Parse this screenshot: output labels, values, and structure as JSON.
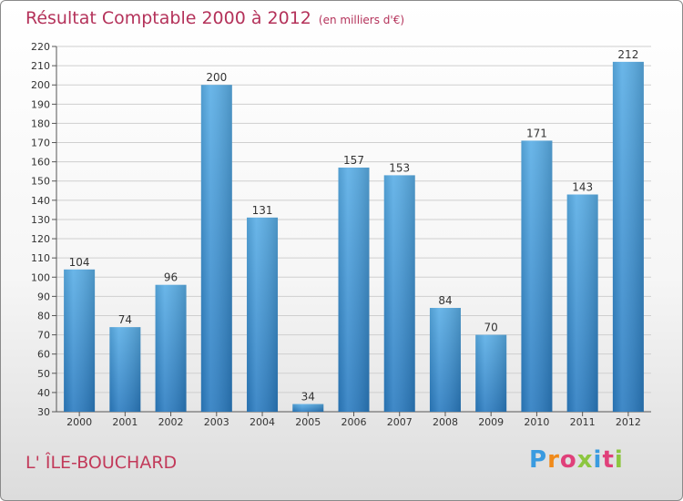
{
  "title": "Résultat Comptable 2000 à 2012",
  "subtitle": "(en milliers d'€)",
  "place": "L' ÎLE-BOUCHARD",
  "brand": "Proxiti",
  "colors": {
    "bar_top": "#5aaee6",
    "bar_bottom": "#2b7cc1",
    "title": "#b4325a",
    "brand_letters": [
      "#3a9be0",
      "#f08a1a",
      "#e0407a",
      "#8cc63f",
      "#3a9be0",
      "#e0407a",
      "#8cc63f"
    ]
  },
  "chart_data": {
    "type": "bar",
    "categories": [
      "2000",
      "2001",
      "2002",
      "2003",
      "2004",
      "2005",
      "2006",
      "2007",
      "2008",
      "2009",
      "2010",
      "2011",
      "2012"
    ],
    "values": [
      104,
      74,
      96,
      200,
      131,
      34,
      157,
      153,
      84,
      70,
      171,
      143,
      212
    ],
    "ylim": [
      30,
      220
    ],
    "ytick_step": 10,
    "grid": true,
    "data_labels": true
  }
}
